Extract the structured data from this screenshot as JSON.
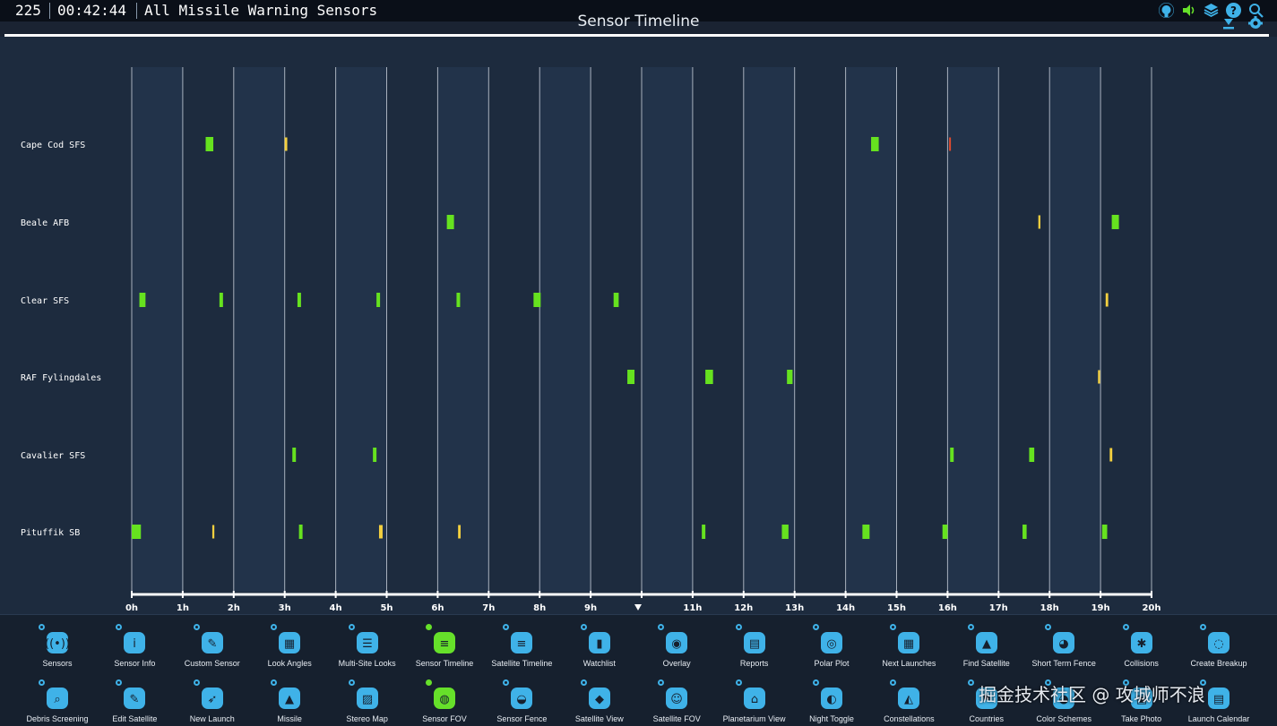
{
  "topbar": {
    "count": "225",
    "clock": "00:42:44",
    "title": "All Missile Warning Sensors",
    "icons": [
      "github-icon",
      "sound-icon",
      "layers-icon",
      "help-icon",
      "search-icon"
    ]
  },
  "page_title": "Sensor Timeline",
  "chart_data": {
    "type": "timeline",
    "x_ticks": [
      "0h",
      "1h",
      "2h",
      "3h",
      "4h",
      "5h",
      "6h",
      "7h",
      "8h",
      "9h",
      "",
      "11h",
      "12h",
      "13h",
      "14h",
      "15h",
      "16h",
      "17h",
      "18h",
      "19h",
      "20h"
    ],
    "xlim": [
      0,
      20
    ],
    "current_time_marker": 10,
    "colors": {
      "good": "#66e21f",
      "marginal": "#f4d03f",
      "poor": "#e04a2e",
      "grid": "#d6dde6",
      "background": "#1d2b3e"
    },
    "rows": [
      {
        "label": "Cape Cod SFS",
        "passes": [
          {
            "start": 1.45,
            "end": 1.6,
            "quality": "good"
          },
          {
            "start": 3.0,
            "end": 3.05,
            "quality": "marginal"
          },
          {
            "start": 14.5,
            "end": 14.65,
            "quality": "good"
          },
          {
            "start": 16.03,
            "end": 16.05,
            "quality": "poor"
          }
        ]
      },
      {
        "label": "Beale AFB",
        "passes": [
          {
            "start": 6.18,
            "end": 6.32,
            "quality": "good"
          },
          {
            "start": 17.78,
            "end": 17.82,
            "quality": "marginal"
          },
          {
            "start": 19.22,
            "end": 19.36,
            "quality": "good"
          }
        ]
      },
      {
        "label": "Clear SFS",
        "passes": [
          {
            "start": 0.15,
            "end": 0.27,
            "quality": "good"
          },
          {
            "start": 1.72,
            "end": 1.79,
            "quality": "good"
          },
          {
            "start": 3.25,
            "end": 3.32,
            "quality": "good"
          },
          {
            "start": 4.8,
            "end": 4.87,
            "quality": "good"
          },
          {
            "start": 6.37,
            "end": 6.44,
            "quality": "good"
          },
          {
            "start": 7.88,
            "end": 8.02,
            "quality": "good"
          },
          {
            "start": 9.45,
            "end": 9.55,
            "quality": "good"
          },
          {
            "start": 19.1,
            "end": 19.15,
            "quality": "marginal"
          }
        ]
      },
      {
        "label": "RAF Fylingdales",
        "passes": [
          {
            "start": 9.72,
            "end": 9.86,
            "quality": "good"
          },
          {
            "start": 11.25,
            "end": 11.4,
            "quality": "good"
          },
          {
            "start": 12.85,
            "end": 12.96,
            "quality": "good"
          },
          {
            "start": 18.95,
            "end": 18.99,
            "quality": "marginal"
          }
        ]
      },
      {
        "label": "Cavalier SFS",
        "passes": [
          {
            "start": 3.15,
            "end": 3.22,
            "quality": "good"
          },
          {
            "start": 4.73,
            "end": 4.8,
            "quality": "good"
          },
          {
            "start": 16.05,
            "end": 16.12,
            "quality": "good"
          },
          {
            "start": 17.6,
            "end": 17.7,
            "quality": "good"
          },
          {
            "start": 19.18,
            "end": 19.23,
            "quality": "marginal"
          }
        ]
      },
      {
        "label": "Pituffik SB",
        "passes": [
          {
            "start": 0.0,
            "end": 0.18,
            "quality": "good"
          },
          {
            "start": 1.58,
            "end": 1.62,
            "quality": "marginal"
          },
          {
            "start": 3.28,
            "end": 3.35,
            "quality": "good"
          },
          {
            "start": 4.85,
            "end": 4.92,
            "quality": "marginal"
          },
          {
            "start": 6.4,
            "end": 6.45,
            "quality": "marginal"
          },
          {
            "start": 11.18,
            "end": 11.25,
            "quality": "good"
          },
          {
            "start": 12.75,
            "end": 12.88,
            "quality": "good"
          },
          {
            "start": 14.33,
            "end": 14.47,
            "quality": "good"
          },
          {
            "start": 15.9,
            "end": 16.0,
            "quality": "good"
          },
          {
            "start": 17.47,
            "end": 17.55,
            "quality": "good"
          },
          {
            "start": 19.03,
            "end": 19.13,
            "quality": "good"
          }
        ]
      }
    ]
  },
  "menu": {
    "row1": [
      {
        "label": "Sensors",
        "icon": "sensors-icon",
        "active": false
      },
      {
        "label": "Sensor Info",
        "icon": "info-icon",
        "active": false
      },
      {
        "label": "Custom Sensor",
        "icon": "wrench-icon",
        "active": false
      },
      {
        "label": "Look Angles",
        "icon": "table-icon",
        "active": false
      },
      {
        "label": "Multi-Site Looks",
        "icon": "list-icon",
        "active": false
      },
      {
        "label": "Sensor Timeline",
        "icon": "timeline-icon",
        "active": true
      },
      {
        "label": "Satellite Timeline",
        "icon": "satellite-timeline-icon",
        "active": false
      },
      {
        "label": "Watchlist",
        "icon": "bookmark-icon",
        "active": false
      },
      {
        "label": "Overlay",
        "icon": "overlay-icon",
        "active": false
      },
      {
        "label": "Reports",
        "icon": "document-icon",
        "active": false
      },
      {
        "label": "Polar Plot",
        "icon": "polar-plot-icon",
        "active": false
      },
      {
        "label": "Next Launches",
        "icon": "calendar-icon",
        "active": false
      },
      {
        "label": "Find Satellite",
        "icon": "shapes-search-icon",
        "active": false
      },
      {
        "label": "Short Term Fence",
        "icon": "eye-search-icon",
        "active": false
      },
      {
        "label": "Collisions",
        "icon": "collision-icon",
        "active": false
      },
      {
        "label": "Create Breakup",
        "icon": "breakup-icon",
        "active": false
      }
    ],
    "row2": [
      {
        "label": "Debris Screening",
        "icon": "debris-search-icon",
        "active": false
      },
      {
        "label": "Edit Satellite",
        "icon": "pencil-icon",
        "active": false
      },
      {
        "label": "New Launch",
        "icon": "rocket-icon",
        "active": false
      },
      {
        "label": "Missile",
        "icon": "missile-icon",
        "active": false
      },
      {
        "label": "Stereo Map",
        "icon": "map-icon",
        "active": false
      },
      {
        "label": "Sensor FOV",
        "icon": "globe-icon",
        "active": true
      },
      {
        "label": "Sensor Fence",
        "icon": "radar-icon",
        "active": false
      },
      {
        "label": "Satellite View",
        "icon": "cube-icon",
        "active": false
      },
      {
        "label": "Satellite FOV",
        "icon": "satellite-fov-icon",
        "active": false
      },
      {
        "label": "Planetarium View",
        "icon": "planetarium-icon",
        "active": false
      },
      {
        "label": "Night Toggle",
        "icon": "moon-icon",
        "active": false
      },
      {
        "label": "Constellations",
        "icon": "constellation-icon",
        "active": false
      },
      {
        "label": "Countries",
        "icon": "flag-icon",
        "active": false
      },
      {
        "label": "Color Schemes",
        "icon": "palette-icon",
        "active": false
      },
      {
        "label": "Take Photo",
        "icon": "camera-icon",
        "active": false
      },
      {
        "label": "Launch Calendar",
        "icon": "launch-calendar-icon",
        "active": false
      }
    ]
  },
  "watermark": "掘金技术社区 @ 攻城师不浪"
}
